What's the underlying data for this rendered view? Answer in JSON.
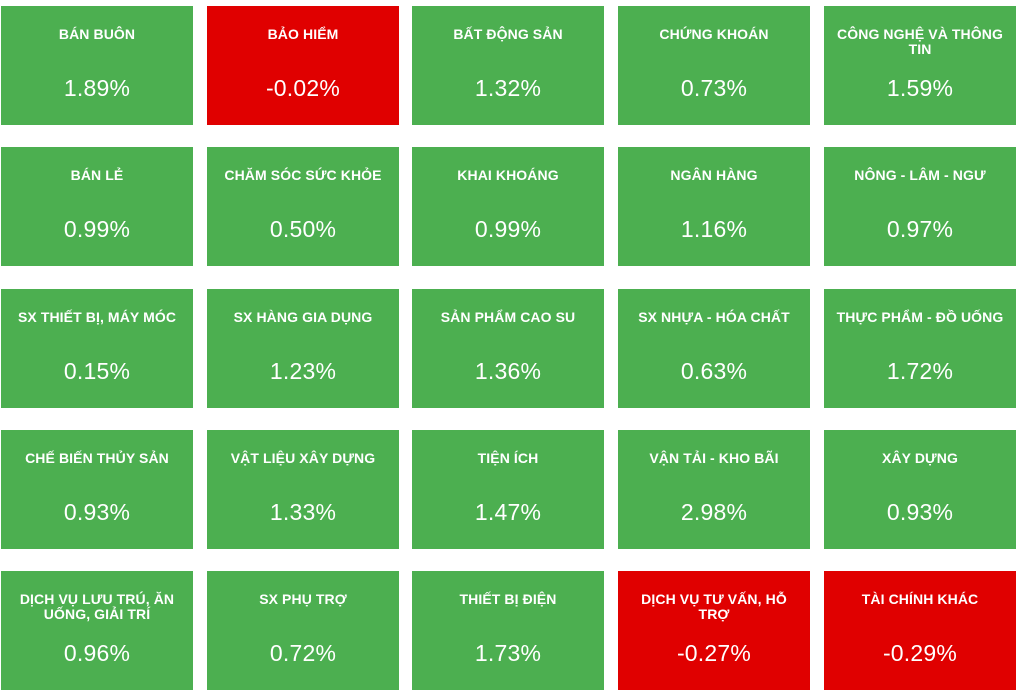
{
  "colors": {
    "up": "#4caf50",
    "down": "#e00000"
  },
  "sectors": [
    {
      "name": "BÁN BUÔN",
      "change": "1.89%",
      "direction": "up"
    },
    {
      "name": "BẢO HIỂM",
      "change": "-0.02%",
      "direction": "down"
    },
    {
      "name": "BẤT ĐỘNG SẢN",
      "change": "1.32%",
      "direction": "up"
    },
    {
      "name": "CHỨNG KHOÁN",
      "change": "0.73%",
      "direction": "up"
    },
    {
      "name": "CÔNG NGHỆ VÀ THÔNG TIN",
      "change": "1.59%",
      "direction": "up"
    },
    {
      "name": "BÁN LẺ",
      "change": "0.99%",
      "direction": "up"
    },
    {
      "name": "CHĂM SÓC SỨC KHỎE",
      "change": "0.50%",
      "direction": "up"
    },
    {
      "name": "KHAI KHOÁNG",
      "change": "0.99%",
      "direction": "up"
    },
    {
      "name": "NGÂN HÀNG",
      "change": "1.16%",
      "direction": "up"
    },
    {
      "name": "NÔNG - LÂM - NGƯ",
      "change": "0.97%",
      "direction": "up"
    },
    {
      "name": "SX THIẾT BỊ, MÁY MÓC",
      "change": "0.15%",
      "direction": "up"
    },
    {
      "name": "SX HÀNG GIA DỤNG",
      "change": "1.23%",
      "direction": "up"
    },
    {
      "name": "SẢN PHẨM CAO SU",
      "change": "1.36%",
      "direction": "up"
    },
    {
      "name": "SX NHỰA - HÓA CHẤT",
      "change": "0.63%",
      "direction": "up"
    },
    {
      "name": "THỰC PHẨM - ĐỒ UỐNG",
      "change": "1.72%",
      "direction": "up"
    },
    {
      "name": "CHẾ BIẾN THỦY SẢN",
      "change": "0.93%",
      "direction": "up"
    },
    {
      "name": "VẬT LIỆU XÂY DỰNG",
      "change": "1.33%",
      "direction": "up"
    },
    {
      "name": "TIỆN ÍCH",
      "change": "1.47%",
      "direction": "up"
    },
    {
      "name": "VẬN TẢI - KHO BÃI",
      "change": "2.98%",
      "direction": "up"
    },
    {
      "name": "XÂY DỰNG",
      "change": "0.93%",
      "direction": "up"
    },
    {
      "name": "DỊCH VỤ LƯU TRÚ, ĂN UỐNG, GIẢI TRÍ",
      "change": "0.96%",
      "direction": "up"
    },
    {
      "name": "SX PHỤ TRỢ",
      "change": "0.72%",
      "direction": "up"
    },
    {
      "name": "THIẾT BỊ ĐIỆN",
      "change": "1.73%",
      "direction": "up"
    },
    {
      "name": "DỊCH VỤ TƯ VẤN, HỖ TRỢ",
      "change": "-0.27%",
      "direction": "down"
    },
    {
      "name": "TÀI CHÍNH KHÁC",
      "change": "-0.29%",
      "direction": "down"
    }
  ]
}
